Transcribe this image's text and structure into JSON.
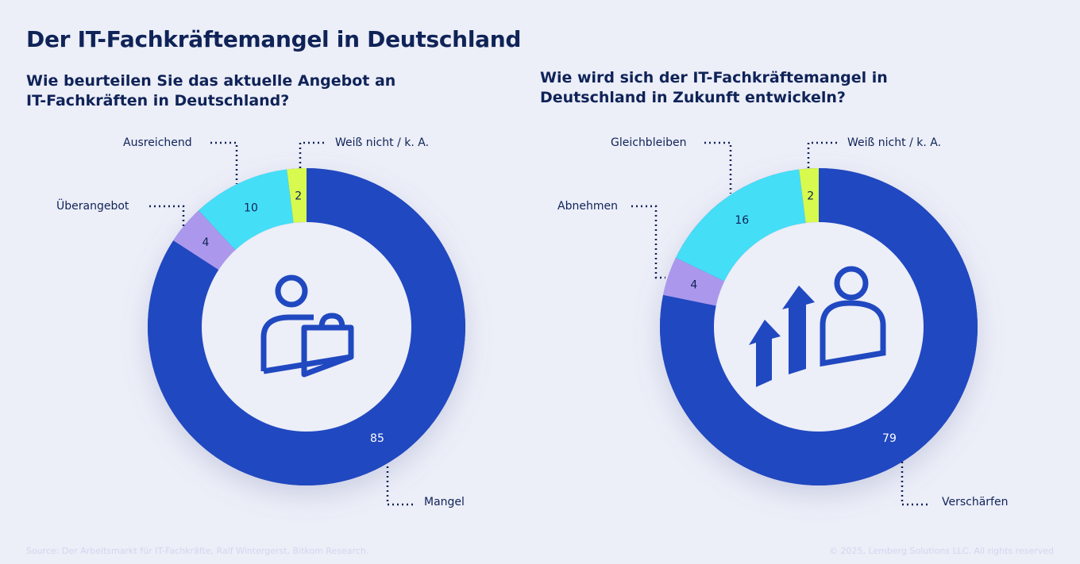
{
  "title": "Der IT-Fachkräftemangel in Deutschland",
  "footer": {
    "source": "Source: Der Arbeitsmarkt für IT-Fachkräfte, Ralf Wintergerst, Bitkom Research.",
    "copyright": "© 2025, Lemberg Solutions LLC. All rights reserved"
  },
  "colors": {
    "blue": "#2048c0",
    "purple": "#ab98ec",
    "cyan": "#45def7",
    "lime": "#d8fa4e",
    "inner": "#eceef8"
  },
  "chart_data": [
    {
      "type": "pie",
      "title": "Wie beurteilen Sie das aktuelle Angebot an IT-Fachkräften in Deutschland?",
      "icon": "person-with-briefcase-icon",
      "categories": [
        "Mangel",
        "Überangebot",
        "Ausreichend",
        "Weiß nicht / k. A."
      ],
      "values": [
        85,
        4,
        10,
        2
      ],
      "colors": [
        "#2048c0",
        "#ab98ec",
        "#45def7",
        "#d8fa4e"
      ]
    },
    {
      "type": "pie",
      "title": "Wie wird sich der IT-Fachkräftemangel in Deutschland in Zukunft entwickeln?",
      "icon": "person-with-rising-arrows-icon",
      "categories": [
        "Verschärfen",
        "Abnehmen",
        "Gleichbleiben",
        "Weiß nicht / k. A."
      ],
      "values": [
        79,
        4,
        16,
        2
      ],
      "colors": [
        "#2048c0",
        "#ab98ec",
        "#45def7",
        "#d8fa4e"
      ]
    }
  ]
}
